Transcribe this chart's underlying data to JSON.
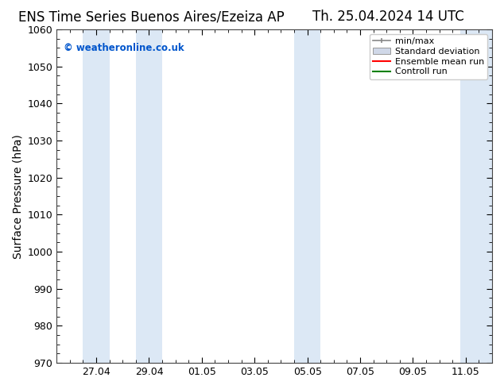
{
  "title_left": "ENS Time Series Buenos Aires/Ezeiza AP",
  "title_right": "Th. 25.04.2024 14 UTC",
  "ylabel": "Surface Pressure (hPa)",
  "ylim": [
    970,
    1060
  ],
  "yticks": [
    970,
    980,
    990,
    1000,
    1010,
    1020,
    1030,
    1040,
    1050,
    1060
  ],
  "xtick_labels": [
    "27.04",
    "29.04",
    "01.05",
    "03.05",
    "05.05",
    "07.05",
    "09.05",
    "11.05"
  ],
  "xtick_positions": [
    2,
    4,
    6,
    8,
    10,
    12,
    14,
    16
  ],
  "xlim": [
    0.5,
    17.0
  ],
  "bg_color": "#ffffff",
  "plot_bg_color": "#ffffff",
  "shaded_bands": [
    {
      "x_start": 1.5,
      "x_end": 2.5,
      "color": "#dce8f5"
    },
    {
      "x_start": 3.5,
      "x_end": 4.5,
      "color": "#dce8f5"
    },
    {
      "x_start": 9.5,
      "x_end": 10.5,
      "color": "#dce8f5"
    },
    {
      "x_start": 15.8,
      "x_end": 17.0,
      "color": "#dce8f5"
    }
  ],
  "watermark": "© weatheronline.co.uk",
  "watermark_color": "#0055cc",
  "legend_labels": [
    "min/max",
    "Standard deviation",
    "Ensemble mean run",
    "Controll run"
  ],
  "legend_colors_line": [
    "#888888",
    "#aaaaaa",
    "#ff0000",
    "#008000"
  ],
  "title_fontsize": 12,
  "axis_label_fontsize": 10,
  "tick_fontsize": 9,
  "spine_color": "#444444",
  "minor_tick_count": 3
}
